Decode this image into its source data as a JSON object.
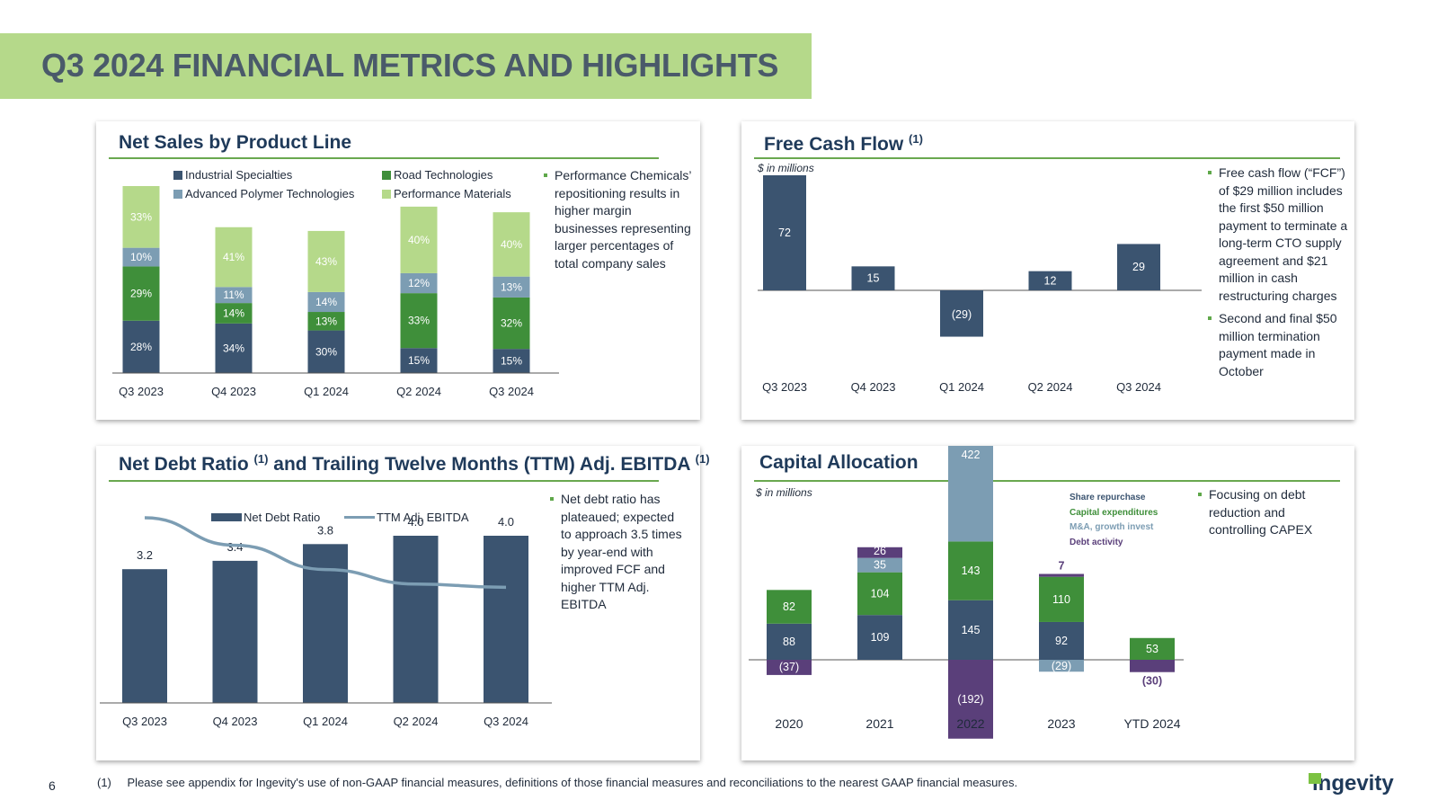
{
  "page": {
    "title": "Q3 2024 FINANCIAL METRICS AND HIGHLIGHTS",
    "page_number": "6",
    "footnote_number": "(1)",
    "footnote_text": "Please see appendix for Ingevity's use of non-GAAP financial measures, definitions of those financial measures and reconciliations to the nearest GAAP financial measures.",
    "logo_text": "ingevity"
  },
  "colors": {
    "navy": "#3b5470",
    "green": "#3f8f3a",
    "steel": "#7c9db3",
    "light_green": "#b5d98a",
    "purple": "#5a3f7a"
  },
  "panels": {
    "net_sales": {
      "title": "Net Sales by Product Line",
      "note": "Performance Chemicals’ repositioning results in higher margin businesses representing larger percentages of total company sales"
    },
    "fcf": {
      "title": "Free Cash Flow",
      "sup": "(1)",
      "units": "$ in millions",
      "notes": [
        "Free cash flow (“FCF”) of $29 million includes the first $50 million payment to terminate a long-term CTO supply agreement and $21 million in cash restructuring charges",
        "Second and final $50 million termination payment made in October"
      ]
    },
    "net_debt": {
      "title_a": "Net Debt Ratio",
      "sup_a": "(1)",
      "title_b": "and Trailing Twelve Months (TTM) Adj. EBITDA",
      "sup_b": "(1)",
      "note": "Net debt ratio has plateaued; expected to approach 3.5 times by year-end with improved FCF and higher TTM Adj. EBITDA"
    },
    "capital": {
      "title": "Capital Allocation",
      "units": "$ in millions",
      "note": "Focusing on debt reduction and controlling CAPEX"
    }
  },
  "chart_data": [
    {
      "id": "net_sales",
      "type": "bar",
      "stacked": true,
      "categories": [
        "Q3 2023",
        "Q4 2023",
        "Q1 2024",
        "Q2 2024",
        "Q3 2024"
      ],
      "series": [
        {
          "name": "Industrial Specialties",
          "values": [
            28,
            34,
            30,
            15,
            15
          ],
          "labels": [
            "28%",
            "34%",
            "30%",
            "15%",
            "15%"
          ],
          "color": "#3b5470"
        },
        {
          "name": "Road Technologies",
          "values": [
            29,
            14,
            13,
            33,
            32
          ],
          "labels": [
            "29%",
            "14%",
            "13%",
            "33%",
            "32%"
          ],
          "color": "#3f8f3a"
        },
        {
          "name": "Advanced Polymer Technologies",
          "values": [
            10,
            11,
            14,
            12,
            13
          ],
          "labels": [
            "10%",
            "11%",
            "14%",
            "12%",
            "13%"
          ],
          "color": "#7c9db3"
        },
        {
          "name": "Performance Materials",
          "values": [
            33,
            41,
            43,
            40,
            40
          ],
          "labels": [
            "33%",
            "41%",
            "43%",
            "40%",
            "40%"
          ],
          "color": "#b5d98a"
        }
      ],
      "relative_totals": [
        100,
        78,
        76,
        89,
        86
      ],
      "legend": "top"
    },
    {
      "id": "fcf",
      "type": "bar",
      "categories": [
        "Q3 2023",
        "Q4 2023",
        "Q1 2024",
        "Q2 2024",
        "Q3 2024"
      ],
      "values": [
        72,
        15,
        -29,
        12,
        29
      ],
      "labels": [
        "72",
        "15",
        "(29)",
        "12",
        "29"
      ],
      "ylabel": "$ in millions"
    },
    {
      "id": "net_debt",
      "type": "bar",
      "categories": [
        "Q3 2023",
        "Q4 2023",
        "Q1 2024",
        "Q2 2024",
        "Q3 2024"
      ],
      "series": [
        {
          "name": "Net Debt Ratio",
          "values": [
            3.2,
            3.4,
            3.8,
            4.0,
            4.0
          ],
          "labels": [
            "3.2",
            "3.4",
            "3.8",
            "4.0",
            "4.0"
          ],
          "type": "bar"
        },
        {
          "name": "TTM Adj. EBITDA",
          "relative_values": [
            1.0,
            0.83,
            0.68,
            0.59,
            0.57
          ],
          "type": "line"
        }
      ],
      "legend": "top"
    },
    {
      "id": "capital",
      "type": "bar",
      "stacked": true,
      "categories": [
        "2020",
        "2021",
        "2022",
        "2023",
        "YTD 2024"
      ],
      "legend_entries": [
        {
          "name": "Share repurchase",
          "color": "#3b5470"
        },
        {
          "name": "Capital expenditures",
          "color": "#3f8f3a"
        },
        {
          "name": "M&A, growth invest",
          "color": "#7c9db3"
        },
        {
          "name": "Debt activity",
          "color": "#5a3f7a"
        }
      ],
      "series": [
        {
          "name": "Share repurchase",
          "values": [
            88,
            109,
            145,
            92,
            0
          ],
          "labels": [
            "88",
            "109",
            "145",
            "92",
            ""
          ]
        },
        {
          "name": "Capital expenditures",
          "values": [
            82,
            104,
            143,
            110,
            53
          ],
          "labels": [
            "82",
            "104",
            "143",
            "110",
            "53"
          ]
        },
        {
          "name": "M&A, growth invest",
          "values": [
            0,
            35,
            422,
            -29,
            0
          ],
          "labels": [
            "",
            "35",
            "422",
            "(29)",
            ""
          ]
        },
        {
          "name": "Debt activity",
          "values": [
            -37,
            26,
            -192,
            7,
            -30
          ],
          "labels": [
            "(37)",
            "26",
            "(192)",
            "7",
            "(30)"
          ]
        }
      ],
      "ylabel": "$ in millions"
    }
  ]
}
